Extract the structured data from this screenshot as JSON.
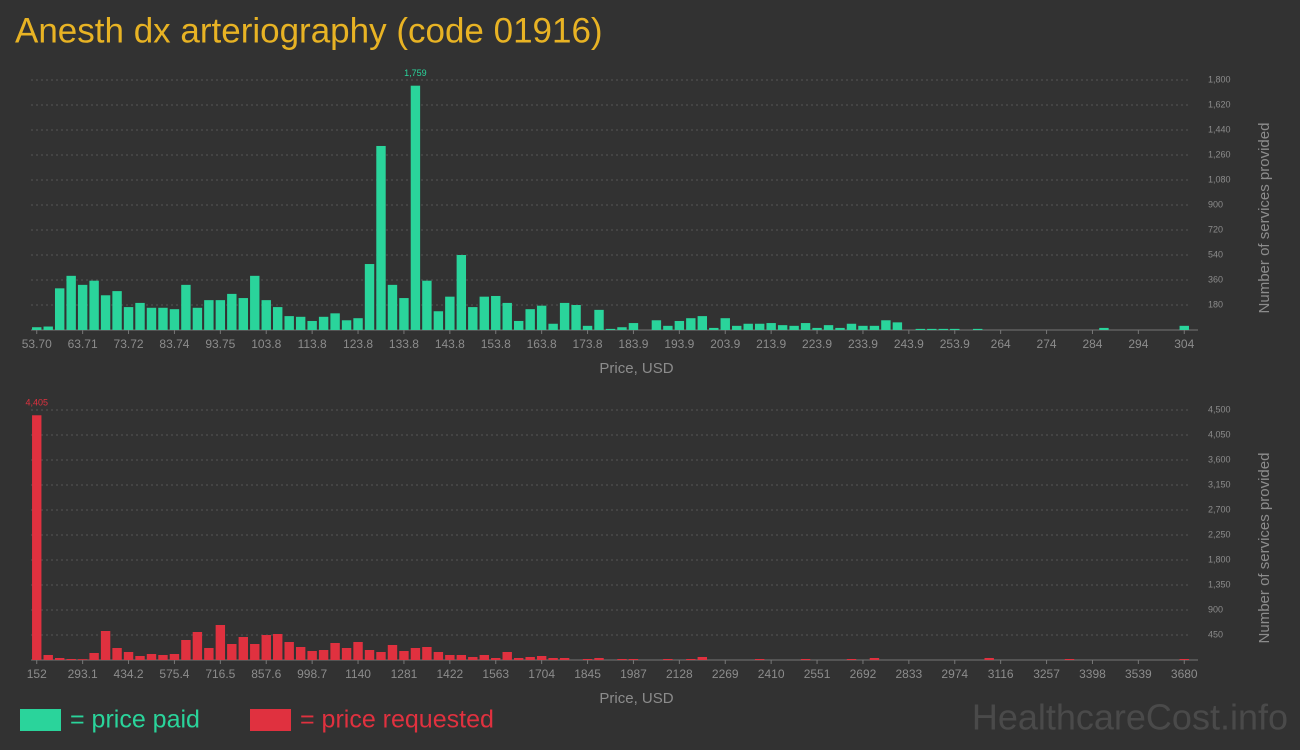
{
  "title": "Anesth dx arteriography (code 01916)",
  "watermark": "HealthcareCost.info",
  "chart_data": [
    {
      "type": "bar",
      "x_label": "Price, USD",
      "y_label": "Number of services provided",
      "grid": true,
      "categories": [
        "53.70",
        null,
        null,
        null,
        "63.71",
        null,
        null,
        null,
        "73.72",
        null,
        null,
        null,
        "83.74",
        null,
        null,
        null,
        "93.75",
        null,
        null,
        null,
        "103.8",
        null,
        null,
        null,
        "113.8",
        null,
        null,
        null,
        "123.8",
        null,
        null,
        null,
        "133.8",
        null,
        null,
        null,
        "143.8",
        null,
        null,
        null,
        "153.8",
        null,
        null,
        null,
        "163.8",
        null,
        null,
        null,
        "173.8",
        null,
        null,
        null,
        "183.9",
        null,
        null,
        null,
        "193.9",
        null,
        null,
        null,
        "203.9",
        null,
        null,
        null,
        "213.9",
        null,
        null,
        null,
        "223.9",
        null,
        null,
        null,
        "233.9",
        null,
        null,
        null,
        "243.9",
        null,
        null,
        null,
        "253.9",
        null,
        null,
        null,
        "264",
        null,
        null,
        null,
        "274",
        null,
        null,
        null,
        "284",
        null,
        null,
        null,
        "294",
        null,
        null,
        null,
        "304"
      ],
      "series": [
        {
          "name": "= price paid",
          "color": "#2ad49b",
          "values": [
            20,
            25,
            300,
            390,
            325,
            355,
            250,
            280,
            165,
            195,
            160,
            160,
            150,
            325,
            160,
            215,
            215,
            260,
            230,
            390,
            215,
            165,
            100,
            95,
            65,
            95,
            120,
            70,
            85,
            475,
            1325,
            325,
            230,
            1759,
            355,
            135,
            240,
            540,
            165,
            240,
            245,
            195,
            65,
            150,
            175,
            45,
            195,
            180,
            30,
            145,
            8,
            20,
            50,
            0,
            70,
            30,
            65,
            85,
            100,
            15,
            85,
            30,
            45,
            45,
            50,
            35,
            30,
            50,
            15,
            35,
            15,
            45,
            30,
            30,
            70,
            55,
            0,
            8,
            8,
            8,
            8,
            0,
            8,
            0,
            0,
            0,
            0,
            0,
            0,
            0,
            0,
            0,
            0,
            15,
            0,
            0,
            0,
            0,
            0,
            0,
            30
          ],
          "value_labels": [
            null,
            null,
            null,
            null,
            null,
            null,
            null,
            null,
            null,
            null,
            null,
            null,
            null,
            null,
            null,
            null,
            null,
            null,
            null,
            null,
            null,
            null,
            null,
            null,
            null,
            null,
            null,
            null,
            null,
            null,
            null,
            null,
            null,
            "1,759",
            null,
            null,
            null,
            null,
            null,
            null,
            null,
            null,
            null,
            null,
            null,
            null,
            null,
            null,
            null,
            null,
            null,
            null,
            null,
            null,
            null,
            null,
            null,
            null,
            null,
            null,
            null,
            null,
            null,
            null,
            null,
            null,
            null,
            null,
            null,
            null,
            null,
            null,
            null,
            null,
            null,
            null,
            null,
            null,
            null,
            null,
            null,
            null,
            null,
            null,
            null,
            null,
            null,
            null,
            null,
            null,
            null,
            null,
            null,
            null,
            null,
            null,
            null,
            null,
            null,
            null,
            null
          ]
        }
      ],
      "ylim": [
        0,
        1800
      ],
      "yticks": [
        180,
        360,
        540,
        720,
        900,
        {
          "value": 1080,
          "label": "1,080"
        },
        {
          "value": 1260,
          "label": "1,260"
        },
        {
          "value": 1440,
          "label": "1,440"
        },
        {
          "value": 1620,
          "label": "1,620"
        },
        {
          "value": 1800,
          "label": "1,800"
        }
      ]
    },
    {
      "type": "bar",
      "x_label": "Price, USD",
      "y_label": "Number of services provided",
      "grid": true,
      "categories": [
        "152",
        null,
        null,
        null,
        "293.1",
        null,
        null,
        null,
        "434.2",
        null,
        null,
        null,
        "575.4",
        null,
        null,
        null,
        "716.5",
        null,
        null,
        null,
        "857.6",
        null,
        null,
        null,
        "998.7",
        null,
        null,
        null,
        "1140",
        null,
        null,
        null,
        "1281",
        null,
        null,
        null,
        "1422",
        null,
        null,
        null,
        "1563",
        null,
        null,
        null,
        "1704",
        null,
        null,
        null,
        "1845",
        null,
        null,
        null,
        "1987",
        null,
        null,
        null,
        "2128",
        null,
        null,
        null,
        "2269",
        null,
        null,
        null,
        "2410",
        null,
        null,
        null,
        "2551",
        null,
        null,
        null,
        "2692",
        null,
        null,
        null,
        "2833",
        null,
        null,
        null,
        "2974",
        null,
        null,
        null,
        "3116",
        null,
        null,
        null,
        "3257",
        null,
        null,
        null,
        "3398",
        null,
        null,
        null,
        "3539",
        null,
        null,
        null,
        "3680"
      ],
      "series": [
        {
          "name": "= price requested",
          "color": "#e0313f",
          "values": [
            4405,
            90,
            36,
            18,
            15,
            126,
            522,
            216,
            144,
            72,
            108,
            90,
            108,
            360,
            504,
            216,
            630,
            288,
            414,
            288,
            450,
            468,
            324,
            234,
            162,
            180,
            306,
            216,
            324,
            180,
            144,
            270,
            162,
            216,
            234,
            144,
            90,
            90,
            54,
            90,
            36,
            144,
            36,
            54,
            72,
            36,
            36,
            0,
            18,
            36,
            0,
            18,
            18,
            0,
            0,
            18,
            0,
            18,
            54,
            0,
            0,
            0,
            0,
            18,
            0,
            0,
            0,
            18,
            0,
            0,
            0,
            18,
            0,
            36,
            0,
            0,
            0,
            0,
            0,
            0,
            0,
            0,
            0,
            36,
            0,
            0,
            0,
            0,
            0,
            0,
            18,
            0,
            0,
            0,
            0,
            0,
            0,
            0,
            0,
            0,
            18
          ],
          "value_labels": [
            "4,405",
            null,
            null,
            null,
            null,
            null,
            null,
            null,
            null,
            null,
            null,
            null,
            null,
            null,
            null,
            null,
            null,
            null,
            null,
            null,
            null,
            null,
            null,
            null,
            null,
            null,
            null,
            null,
            null,
            null,
            null,
            null,
            null,
            null,
            null,
            null,
            null,
            null,
            null,
            null,
            null,
            null,
            null,
            null,
            null,
            null,
            null,
            null,
            null,
            null,
            null,
            null,
            null,
            null,
            null,
            null,
            null,
            null,
            null,
            null,
            null,
            null,
            null,
            null,
            null,
            null,
            null,
            null,
            null,
            null,
            null,
            null,
            null,
            null,
            null,
            null,
            null,
            null,
            null,
            null,
            null,
            null,
            null,
            null,
            null,
            null,
            null,
            null,
            null,
            null,
            null,
            null,
            null,
            null,
            null,
            null,
            null,
            null,
            null,
            null,
            null
          ]
        }
      ],
      "ylim": [
        0,
        4500
      ],
      "yticks": [
        450,
        900,
        {
          "value": 1350,
          "label": "1,350"
        },
        {
          "value": 1800,
          "label": "1,800"
        },
        {
          "value": 2250,
          "label": "2,250"
        },
        {
          "value": 2700,
          "label": "2,700"
        },
        {
          "value": 3150,
          "label": "3,150"
        },
        {
          "value": 3600,
          "label": "3,600"
        },
        {
          "value": 4050,
          "label": "4,050"
        },
        {
          "value": 4500,
          "label": "4,500"
        }
      ]
    }
  ]
}
